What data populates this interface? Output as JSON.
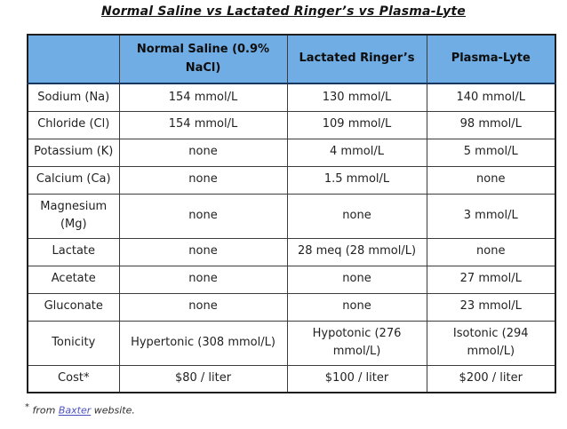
{
  "page": {
    "title": "Normal Saline vs Lactated Ringer’s vs Plasma-Lyte"
  },
  "colors": {
    "header_bg": "#6fade4",
    "header_divider": "#17375e",
    "grid_line": "#3c3c3c",
    "outer_border": "#1e1e1e",
    "body_text": "#222222",
    "link": "#4a4fc0"
  },
  "table": {
    "headers": [
      "",
      "Normal Saline (0.9% NaCl)",
      "Lactated Ringer’s",
      "Plasma-Lyte"
    ],
    "rows": [
      {
        "label": "Sodium (Na)",
        "values": [
          "154 mmol/L",
          "130 mmol/L",
          "140 mmol/L"
        ]
      },
      {
        "label": "Chloride (Cl)",
        "values": [
          "154 mmol/L",
          "109 mmol/L",
          "98 mmol/L"
        ]
      },
      {
        "label": "Potassium (K)",
        "values": [
          "none",
          "4 mmol/L",
          "5 mmol/L"
        ]
      },
      {
        "label": "Calcium (Ca)",
        "values": [
          "none",
          "1.5 mmol/L",
          "none"
        ]
      },
      {
        "label": "Magnesium (Mg)",
        "values": [
          "none",
          "none",
          "3 mmol/L"
        ]
      },
      {
        "label": "Lactate",
        "values": [
          "none",
          "28 meq (28 mmol/L)",
          "none"
        ]
      },
      {
        "label": "Acetate",
        "values": [
          "none",
          "none",
          "27 mmol/L"
        ]
      },
      {
        "label": "Gluconate",
        "values": [
          "none",
          "none",
          "23 mmol/L"
        ]
      },
      {
        "label": "Tonicity",
        "values": [
          "Hypertonic (308 mmol/L)",
          "Hypotonic (276 mmol/L)",
          "Isotonic (294 mmol/L)"
        ]
      },
      {
        "label": "Cost*",
        "values": [
          "$80 / liter",
          "$100 / liter",
          "$200 / liter"
        ]
      }
    ]
  },
  "footnote": {
    "marker": "*",
    "text_before": "from",
    "link_text": "Baxter",
    "text_after": "website."
  }
}
